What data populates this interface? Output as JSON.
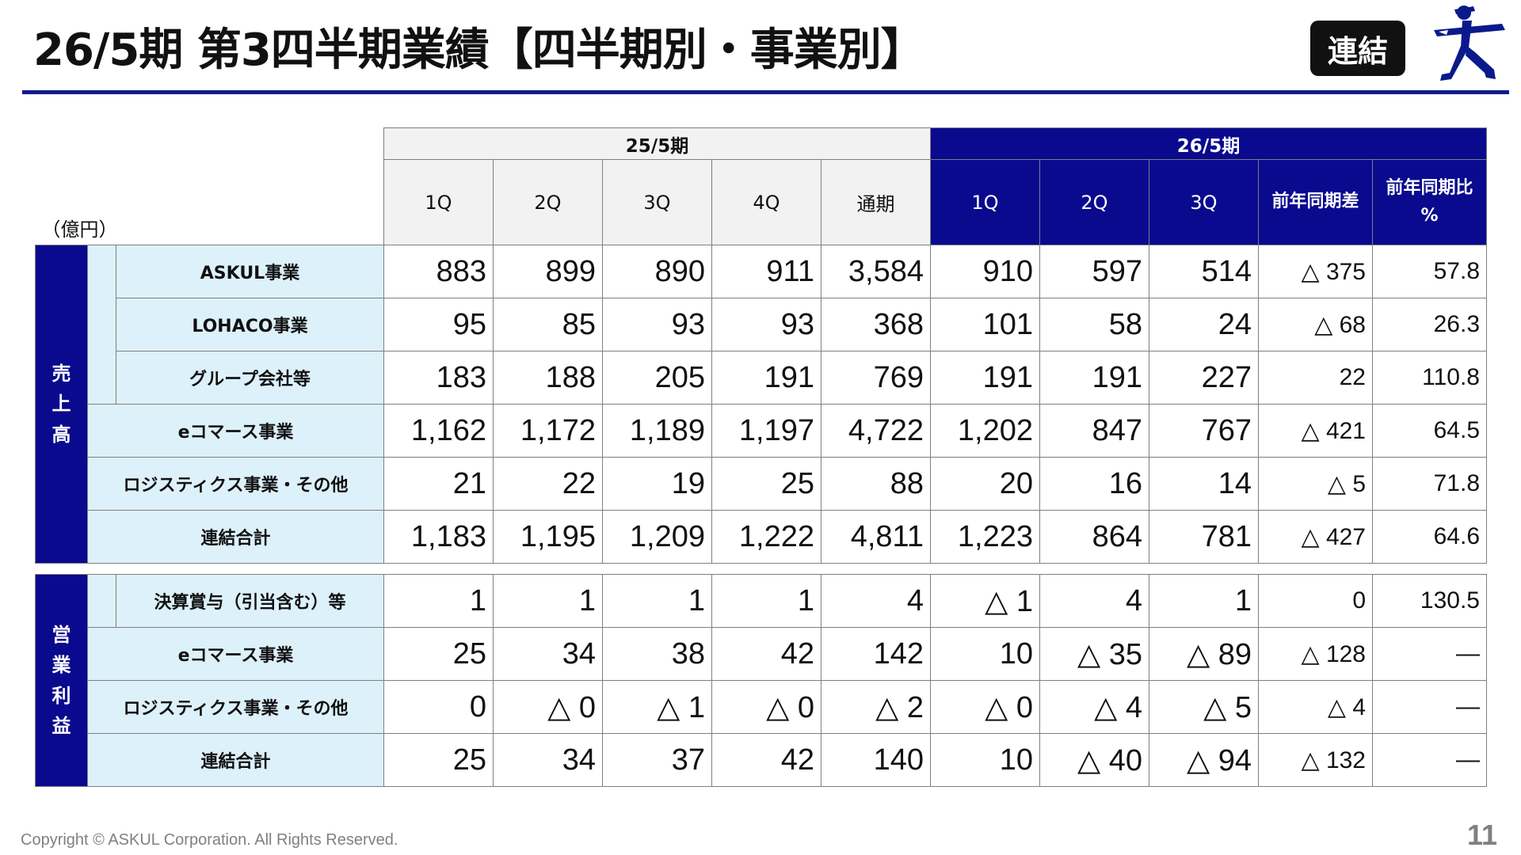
{
  "header": {
    "title": "26/5期 第3四半期業績【四半期別・事業別】",
    "badge": "連結"
  },
  "table": {
    "unit": "（億円）",
    "period_prev": "25/5期",
    "period_cur": "26/5期",
    "columns_prev": [
      "1Q",
      "2Q",
      "3Q",
      "4Q",
      "通期"
    ],
    "columns_cur": [
      "1Q",
      "2Q",
      "3Q"
    ],
    "col_yoy_diff": "前年同期差",
    "col_yoy_ratio": "前年同期比",
    "col_yoy_ratio_unit": "%",
    "sales_group": [
      "売",
      "上",
      "高"
    ],
    "sales_rows": [
      {
        "label": "ASKUL事業",
        "values": [
          "883",
          "899",
          "890",
          "911",
          "3,584",
          "910",
          "597",
          "514",
          "△ 375",
          "57.8"
        ]
      },
      {
        "label": "LOHACO事業",
        "values": [
          "95",
          "85",
          "93",
          "93",
          "368",
          "101",
          "58",
          "24",
          "△ 68",
          "26.3"
        ]
      },
      {
        "label": "グループ会社等",
        "values": [
          "183",
          "188",
          "205",
          "191",
          "769",
          "191",
          "191",
          "227",
          "22",
          "110.8"
        ]
      },
      {
        "label": "eコマース事業",
        "values": [
          "1,162",
          "1,172",
          "1,189",
          "1,197",
          "4,722",
          "1,202",
          "847",
          "767",
          "△ 421",
          "64.5"
        ]
      },
      {
        "label": "ロジスティクス事業・その他",
        "values": [
          "21",
          "22",
          "19",
          "25",
          "88",
          "20",
          "16",
          "14",
          "△ 5",
          "71.8"
        ]
      },
      {
        "label": "連結合計",
        "values": [
          "1,183",
          "1,195",
          "1,209",
          "1,222",
          "4,811",
          "1,223",
          "864",
          "781",
          "△ 427",
          "64.6"
        ]
      }
    ],
    "profit_group": [
      "営",
      "業",
      "利",
      "益"
    ],
    "profit_rows": [
      {
        "label": "決算賞与（引当含む）等",
        "values": [
          "1",
          "1",
          "1",
          "1",
          "4",
          "△ 1",
          "4",
          "1",
          "0",
          "130.5"
        ]
      },
      {
        "label": "eコマース事業",
        "values": [
          "25",
          "34",
          "38",
          "42",
          "142",
          "10",
          "△ 35",
          "△ 89",
          "△ 128",
          "―"
        ]
      },
      {
        "label": "ロジスティクス事業・その他",
        "values": [
          "0",
          "△ 0",
          "△ 1",
          "△ 0",
          "△ 2",
          "△ 0",
          "△ 4",
          "△ 5",
          "△ 4",
          "―"
        ]
      },
      {
        "label": "連結合計",
        "values": [
          "25",
          "34",
          "37",
          "42",
          "140",
          "10",
          "△ 40",
          "△ 94",
          "△ 132",
          "―"
        ]
      }
    ]
  },
  "footer": {
    "copyright": "Copyright © ASKUL Corporation. All Rights Reserved.",
    "page_number": "11"
  },
  "colors": {
    "accent": "#0a0a8f",
    "label_bg": "#ddf1fb",
    "prev_header_bg": "#f2f2f2"
  },
  "icons": {
    "logo": "askul-runner-logo"
  }
}
